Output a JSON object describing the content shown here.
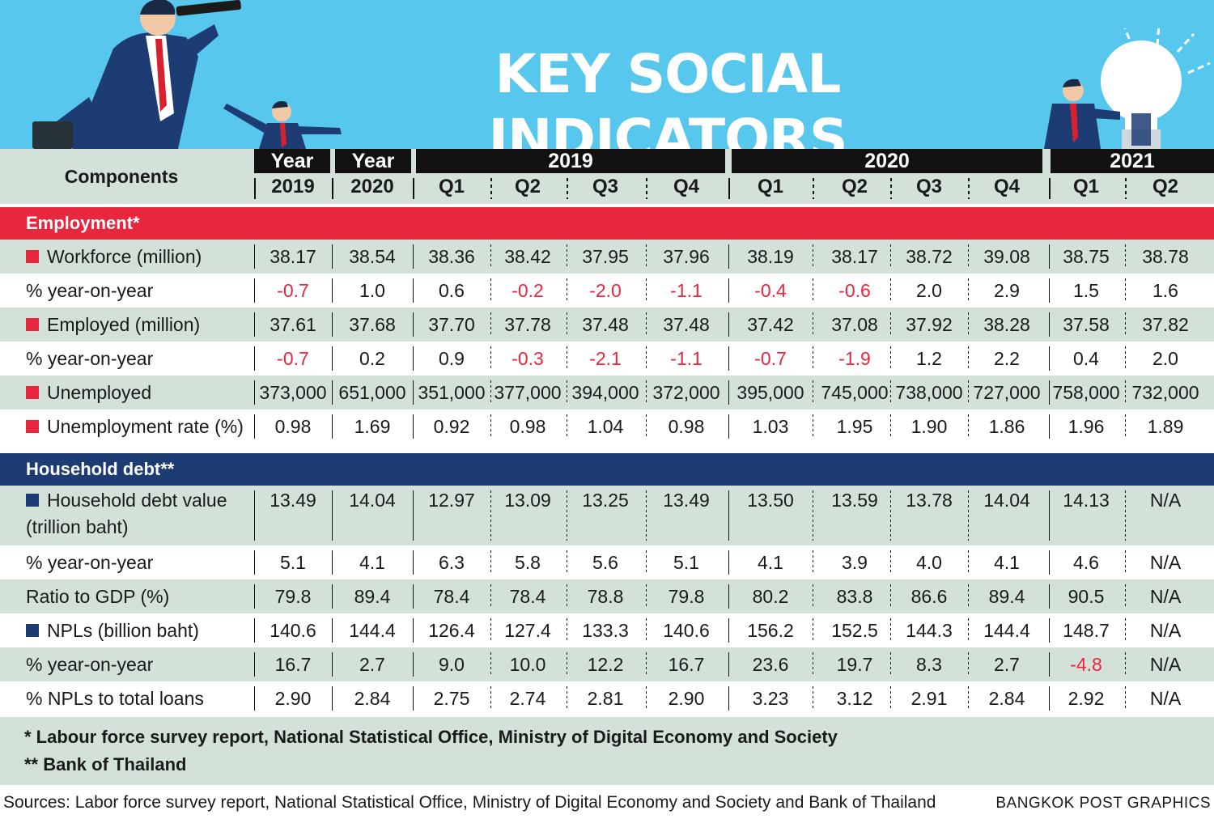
{
  "title": "KEY SOCIAL INDICATORS",
  "colors": {
    "banner": "#57c7ee",
    "employment": "#e8263d",
    "debt": "#1d3c74",
    "shade": "#d3e1d8",
    "negative": "#e8263d"
  },
  "header": {
    "components_label": "Components",
    "groups": [
      "Year",
      "Year",
      "2019",
      "2020",
      "2021"
    ],
    "subs": [
      "2019",
      "2020",
      "Q1",
      "Q2",
      "Q3",
      "Q4",
      "Q1",
      "Q2",
      "Q3",
      "Q4",
      "Q1",
      "Q2"
    ]
  },
  "chart_data": {
    "type": "table",
    "title": "KEY SOCIAL INDICATORS",
    "columns": [
      "Year 2019",
      "Year 2020",
      "2019 Q1",
      "2019 Q2",
      "2019 Q3",
      "2019 Q4",
      "2020 Q1",
      "2020 Q2",
      "2020 Q3",
      "2020 Q4",
      "2021 Q1",
      "2021 Q2"
    ],
    "sections": [
      {
        "name": "Employment*",
        "rows": [
          {
            "label": "Workforce (million)",
            "marker": "red",
            "values": [
              "38.17",
              "38.54",
              "38.36",
              "38.42",
              "37.95",
              "37.96",
              "38.19",
              "38.17",
              "38.72",
              "39.08",
              "38.75",
              "38.78"
            ]
          },
          {
            "label": "% year-on-year",
            "marker": "",
            "values": [
              "-0.7",
              "1.0",
              "0.6",
              "-0.2",
              "-2.0",
              "-1.1",
              "-0.4",
              "-0.6",
              "2.0",
              "2.9",
              "1.5",
              "1.6"
            ]
          },
          {
            "label": "Employed (million)",
            "marker": "red",
            "values": [
              "37.61",
              "37.68",
              "37.70",
              "37.78",
              "37.48",
              "37.48",
              "37.42",
              "37.08",
              "37.92",
              "38.28",
              "37.58",
              "37.82"
            ]
          },
          {
            "label": "%  year-on-year",
            "marker": "",
            "values": [
              "-0.7",
              "0.2",
              "0.9",
              "-0.3",
              "-2.1",
              "-1.1",
              "-0.7",
              "-1.9",
              "1.2",
              "2.2",
              "0.4",
              "2.0"
            ]
          },
          {
            "label": "Unemployed",
            "marker": "red",
            "values": [
              "373,000",
              "651,000",
              "351,000",
              "377,000",
              "394,000",
              "372,000",
              "395,000",
              "745,000",
              "738,000",
              "727,000",
              "758,000",
              "732,000"
            ]
          },
          {
            "label": "Unemployment rate (%)",
            "marker": "red",
            "values": [
              "0.98",
              "1.69",
              "0.92",
              "0.98",
              "1.04",
              "0.98",
              "1.03",
              "1.95",
              "1.90",
              "1.86",
              "1.96",
              "1.89"
            ]
          }
        ]
      },
      {
        "name": "Household debt**",
        "rows": [
          {
            "label": "Household debt value",
            "label2": "(trillion baht)",
            "marker": "blue",
            "values": [
              "13.49",
              "14.04",
              "12.97",
              "13.09",
              "13.25",
              "13.49",
              "13.50",
              "13.59",
              "13.78",
              "14.04",
              "14.13",
              "N/A"
            ]
          },
          {
            "label": "% year-on-year",
            "marker": "",
            "values": [
              "5.1",
              "4.1",
              "6.3",
              "5.8",
              "5.6",
              "5.1",
              "4.1",
              "3.9",
              "4.0",
              "4.1",
              "4.6",
              "N/A"
            ]
          },
          {
            "label": "Ratio to GDP (%)",
            "marker": "",
            "values": [
              "79.8",
              "89.4",
              "78.4",
              "78.4",
              "78.8",
              "79.8",
              "80.2",
              "83.8",
              "86.6",
              "89.4",
              "90.5",
              "N/A"
            ]
          },
          {
            "label": "NPLs (billion baht)",
            "marker": "blue",
            "values": [
              "140.6",
              "144.4",
              "126.4",
              "127.4",
              "133.3",
              "140.6",
              "156.2",
              "152.5",
              "144.3",
              "144.4",
              "148.7",
              "N/A"
            ]
          },
          {
            "label": "% year-on-year",
            "marker": "",
            "values": [
              "16.7",
              "2.7",
              "9.0",
              "10.0",
              "12.2",
              "16.7",
              "23.6",
              "19.7",
              "8.3",
              "2.7",
              "-4.8",
              "N/A"
            ]
          },
          {
            "label": "% NPLs  to total loans",
            "marker": "",
            "values": [
              "2.90",
              "2.84",
              "2.75",
              "2.74",
              "2.81",
              "2.90",
              "3.23",
              "3.12",
              "2.91",
              "2.84",
              "2.92",
              "N/A"
            ]
          }
        ]
      }
    ]
  },
  "notes": [
    "*  Labour force survey report, National Statistical Office, Ministry of Digital Economy and Society",
    "** Bank of Thailand"
  ],
  "sources": "Sources: Labor force survey report, National Statistical Office, Ministry of Digital Economy and Society and  Bank of Thailand",
  "credit": "BANGKOK POST GRAPHICS"
}
